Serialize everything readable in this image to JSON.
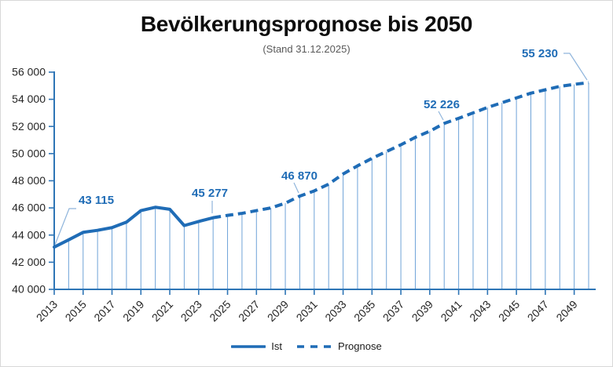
{
  "window": {
    "background": "#ffffff",
    "border_color": "#d8d8d8"
  },
  "chart_data": {
    "type": "line",
    "title": "Bevölkerungsprognose bis 2050",
    "subtitle": "(Stand 31.12.2025)",
    "x_range": [
      2013,
      2050
    ],
    "ylim": [
      40000,
      56000
    ],
    "grid": false,
    "legend_position": "bottom",
    "series": [
      {
        "name": "Ist",
        "line_style": "solid",
        "x": [
          2013,
          2014,
          2015,
          2016,
          2017,
          2018,
          2019,
          2020,
          2021,
          2022,
          2023,
          2024
        ],
        "values": [
          43115,
          43650,
          44200,
          44350,
          44550,
          44950,
          45800,
          46050,
          45900,
          44700,
          45000,
          45277
        ]
      },
      {
        "name": "Prognose",
        "line_style": "dashed",
        "x": [
          2024,
          2025,
          2026,
          2027,
          2028,
          2029,
          2030,
          2031,
          2032,
          2033,
          2034,
          2035,
          2036,
          2037,
          2038,
          2039,
          2040,
          2041,
          2042,
          2043,
          2044,
          2045,
          2046,
          2047,
          2048,
          2049,
          2050
        ],
        "values": [
          45277,
          45450,
          45600,
          45800,
          46000,
          46350,
          46870,
          47250,
          47750,
          48500,
          49100,
          49650,
          50150,
          50650,
          51200,
          51650,
          52226,
          52600,
          53000,
          53400,
          53750,
          54100,
          54450,
          54700,
          54950,
          55100,
          55230
        ]
      }
    ],
    "data_labels": [
      {
        "text": "43 115",
        "year": 2013,
        "value": 43115
      },
      {
        "text": "45 277",
        "year": 2024,
        "value": 45277
      },
      {
        "text": "46 870",
        "year": 2030,
        "value": 46870
      },
      {
        "text": "52 226",
        "year": 2040,
        "value": 52226
      },
      {
        "text": "55 230",
        "year": 2050,
        "value": 55230
      }
    ],
    "y_axis": {
      "min": 40000,
      "max": 56000,
      "step": 2000,
      "tick_labels": [
        "40 000",
        "42 000",
        "44 000",
        "46 000",
        "48 000",
        "50 000",
        "52 000",
        "54 000",
        "56 000"
      ]
    },
    "x_axis": {
      "tick_labels": [
        "2013",
        "2015",
        "2017",
        "2019",
        "2021",
        "2023",
        "2025",
        "2027",
        "2029",
        "2031",
        "2033",
        "2035",
        "2037",
        "2039",
        "2041",
        "2043",
        "2045",
        "2047",
        "2049"
      ]
    },
    "legend": [
      {
        "label": "Ist",
        "style": "solid"
      },
      {
        "label": "Prognose",
        "style": "dashed"
      }
    ],
    "colors": {
      "line": "#1F6CB6",
      "drop_line": "#6FA3D8",
      "leader": "#8FB5DC",
      "label_text": "#1F6CB6",
      "axis": "#2E75B6",
      "tick_text": "#262626",
      "title_text": "#0d0d0d",
      "subtitle_text": "#595959"
    }
  }
}
